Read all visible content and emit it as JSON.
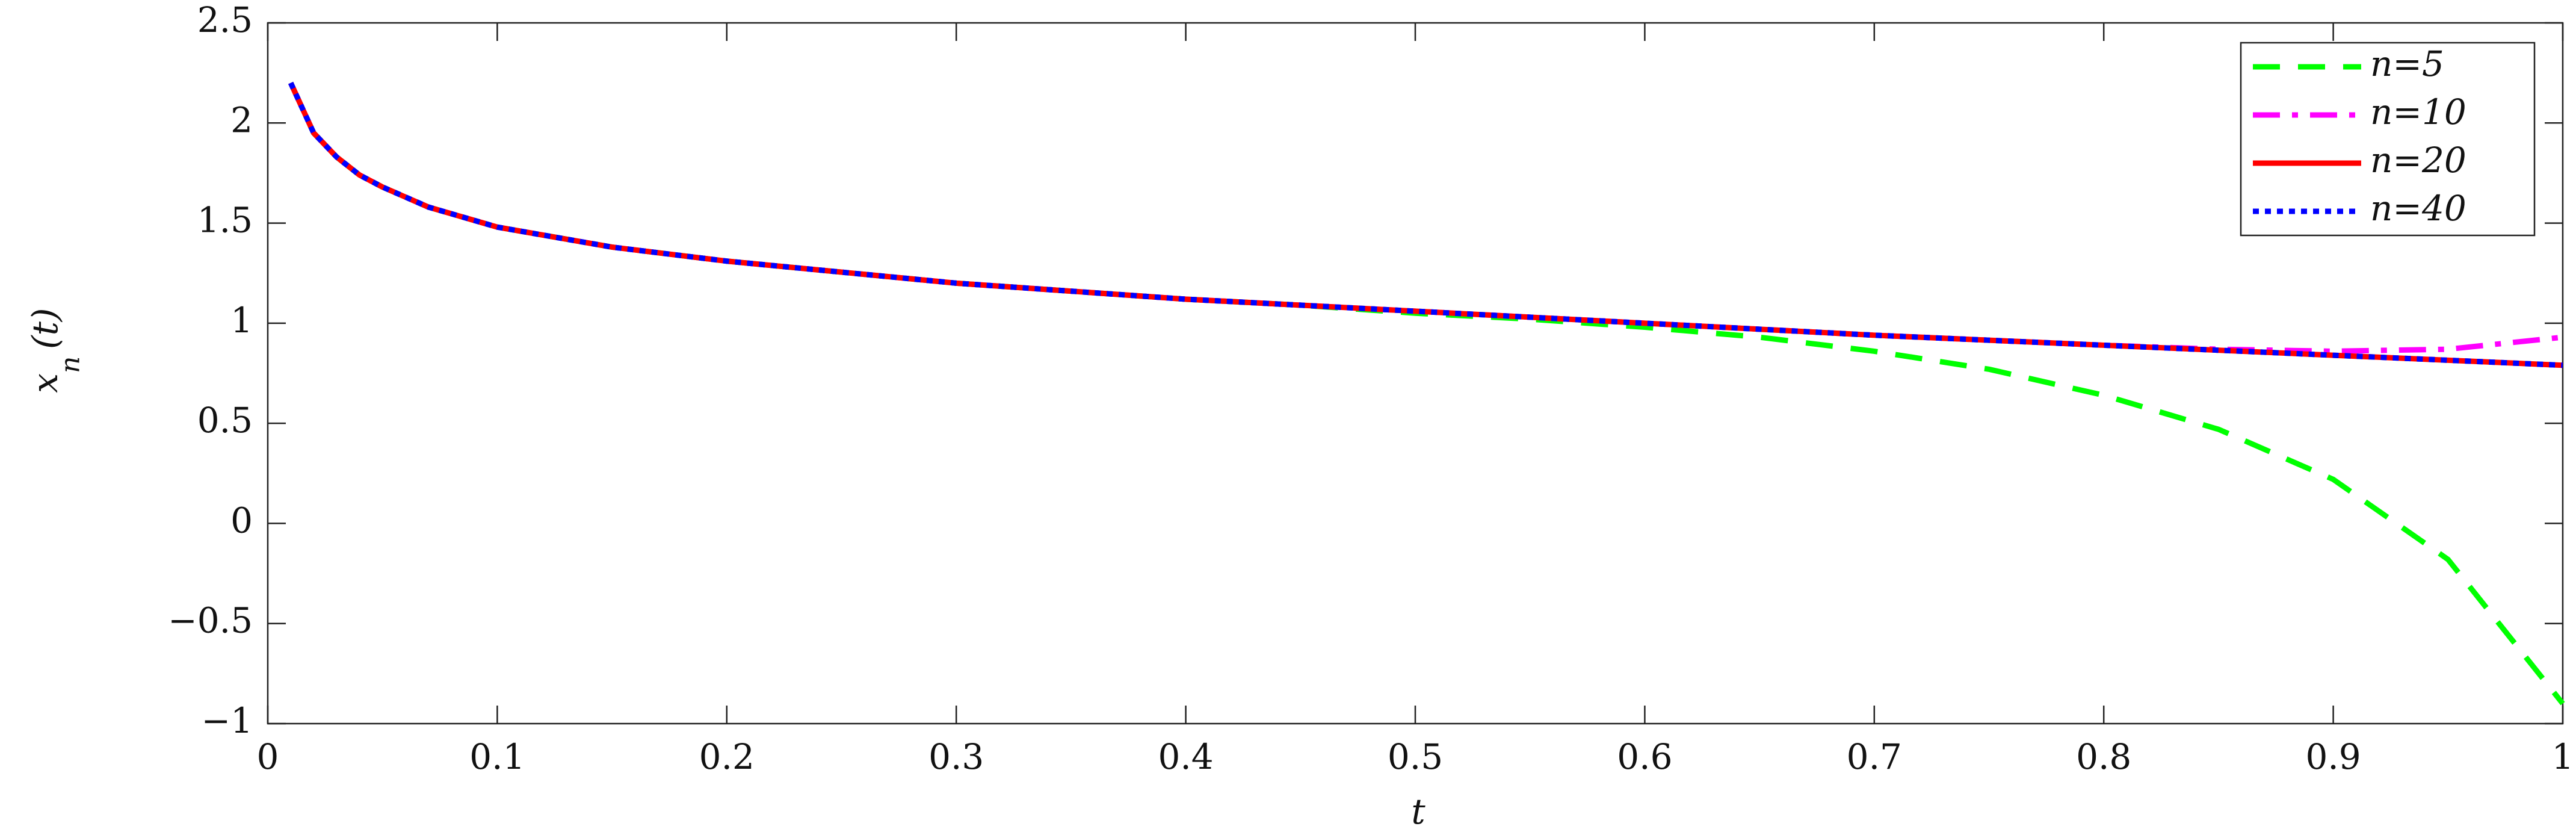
{
  "chart_data": {
    "type": "line",
    "xlabel": "t",
    "ylabel": {
      "base": "x",
      "sub": "n",
      "rest": "(t)"
    },
    "x": [
      0.01,
      0.02,
      0.03,
      0.04,
      0.05,
      0.07,
      0.1,
      0.15,
      0.2,
      0.3,
      0.4,
      0.45,
      0.5,
      0.55,
      0.6,
      0.65,
      0.7,
      0.75,
      0.8,
      0.85,
      0.9,
      0.95,
      1.0
    ],
    "series": [
      {
        "name": "n=5",
        "color": "#00ff00",
        "dash": "dashed",
        "values": [
          2.2,
          1.95,
          1.83,
          1.74,
          1.68,
          1.58,
          1.48,
          1.38,
          1.31,
          1.2,
          1.12,
          1.09,
          1.05,
          1.02,
          0.98,
          0.93,
          0.86,
          0.77,
          0.64,
          0.47,
          0.22,
          -0.18,
          -0.9
        ]
      },
      {
        "name": "n=10",
        "color": "#ff00ff",
        "dash": "dashdot",
        "values": [
          2.2,
          1.95,
          1.83,
          1.74,
          1.68,
          1.58,
          1.48,
          1.38,
          1.31,
          1.2,
          1.12,
          1.09,
          1.06,
          1.03,
          1.0,
          0.97,
          0.94,
          0.915,
          0.89,
          0.87,
          0.86,
          0.87,
          0.93
        ]
      },
      {
        "name": "n=20",
        "color": "#ff0000",
        "dash": "solid",
        "values": [
          2.2,
          1.95,
          1.83,
          1.74,
          1.68,
          1.58,
          1.48,
          1.38,
          1.31,
          1.2,
          1.12,
          1.09,
          1.06,
          1.03,
          1.0,
          0.97,
          0.94,
          0.915,
          0.89,
          0.865,
          0.84,
          0.815,
          0.79
        ]
      },
      {
        "name": "n=40",
        "color": "#0000ff",
        "dash": "dotted",
        "values": [
          2.2,
          1.95,
          1.83,
          1.74,
          1.68,
          1.58,
          1.48,
          1.38,
          1.31,
          1.2,
          1.12,
          1.09,
          1.06,
          1.03,
          1.0,
          0.97,
          0.94,
          0.915,
          0.89,
          0.865,
          0.84,
          0.815,
          0.79
        ]
      }
    ],
    "xlim": [
      0,
      1
    ],
    "xticks": [
      0,
      0.1,
      0.2,
      0.3,
      0.4,
      0.5,
      0.6,
      0.7,
      0.8,
      0.9,
      1
    ],
    "ylim": [
      -1,
      2.5
    ],
    "yticks": [
      {
        "value": -1,
        "label": "−1"
      },
      {
        "value": -0.5,
        "label": "−0.5"
      },
      0,
      0.5,
      1,
      1.5,
      2,
      2.5
    ],
    "grid": false,
    "legend": "upper right"
  }
}
